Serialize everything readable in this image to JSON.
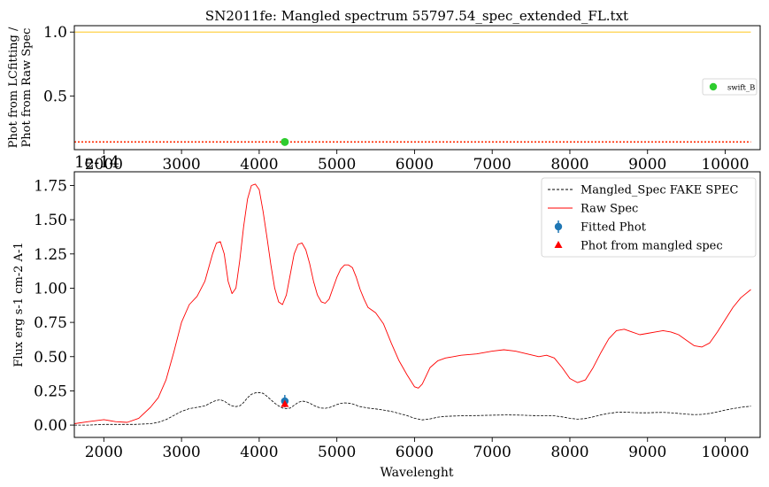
{
  "figure_title": "SN2011fe: Mangled spectrum 55797.54_spec_extended_FL.txt",
  "chart_data": [
    {
      "type": "scatter",
      "ylabel_line1": "Phot from LCfitting /",
      "ylabel_line2": "Phot from Raw Spec",
      "xlim": [
        1620,
        10450
      ],
      "ylim": [
        0.08,
        1.05
      ],
      "x_ticks": [
        2000,
        3000,
        4000,
        5000,
        6000,
        7000,
        8000,
        9000,
        10000
      ],
      "y_ticks": [
        0.5,
        1.0
      ],
      "y_tick_labels": [
        "0.5",
        "1.0"
      ],
      "reference_lines": [
        {
          "y": 1.0,
          "style": "solid",
          "color": "#ffd24a",
          "x_range": [
            1620,
            10330
          ]
        },
        {
          "y": 0.14,
          "style": "dotted",
          "color": "#ff2a00",
          "x_range": [
            1620,
            10330
          ]
        }
      ],
      "series": [
        {
          "name": "swift_B",
          "color": "#2ecc2e",
          "x": [
            4330
          ],
          "y": [
            0.14
          ],
          "yerr": [
            0.012
          ]
        }
      ],
      "legend": {
        "placement": "right",
        "entries": [
          "swift_B"
        ]
      }
    },
    {
      "type": "line",
      "xlabel": "Wavelenght",
      "ylabel": "Flux erg s-1 cm-2 A-1",
      "y_offset_label": "1e-14",
      "xlim": [
        1620,
        10450
      ],
      "ylim": [
        -0.09,
        1.85
      ],
      "x_ticks": [
        2000,
        3000,
        4000,
        5000,
        6000,
        7000,
        8000,
        9000,
        10000
      ],
      "y_ticks": [
        0,
        0.25,
        0.5,
        0.75,
        1.0,
        1.25,
        1.5,
        1.75
      ],
      "y_tick_labels": [
        "0.00",
        "0.25",
        "0.50",
        "0.75",
        "1.00",
        "1.25",
        "1.50",
        "1.75"
      ],
      "legend": {
        "placement": "top-right",
        "entries": [
          "Mangled_Spec FAKE SPEC",
          "Raw Spec",
          "Fitted Phot",
          "Phot from mangled spec"
        ]
      },
      "series": [
        {
          "name": "Raw Spec",
          "color": "#ff0000",
          "style": "solid",
          "x": [
            1620,
            1800,
            2000,
            2150,
            2300,
            2450,
            2600,
            2700,
            2800,
            2900,
            3000,
            3100,
            3200,
            3300,
            3400,
            3450,
            3500,
            3550,
            3600,
            3650,
            3700,
            3750,
            3800,
            3850,
            3900,
            3950,
            4000,
            4050,
            4100,
            4150,
            4200,
            4250,
            4300,
            4350,
            4400,
            4450,
            4500,
            4550,
            4600,
            4650,
            4700,
            4750,
            4800,
            4850,
            4900,
            4950,
            5000,
            5050,
            5100,
            5150,
            5200,
            5250,
            5300,
            5350,
            5400,
            5500,
            5600,
            5700,
            5800,
            5900,
            6000,
            6050,
            6100,
            6150,
            6200,
            6300,
            6400,
            6500,
            6600,
            6800,
            7000,
            7150,
            7300,
            7450,
            7600,
            7700,
            7800,
            7900,
            8000,
            8100,
            8200,
            8300,
            8400,
            8500,
            8600,
            8700,
            8800,
            8900,
            9000,
            9100,
            9200,
            9300,
            9400,
            9500,
            9600,
            9700,
            9800,
            9900,
            10000,
            10100,
            10200,
            10330
          ],
          "y": [
            0.01,
            0.025,
            0.04,
            0.025,
            0.02,
            0.05,
            0.13,
            0.2,
            0.33,
            0.53,
            0.75,
            0.88,
            0.94,
            1.05,
            1.25,
            1.33,
            1.34,
            1.25,
            1.05,
            0.96,
            1.0,
            1.2,
            1.45,
            1.65,
            1.75,
            1.76,
            1.72,
            1.56,
            1.37,
            1.17,
            1.0,
            0.9,
            0.88,
            0.95,
            1.1,
            1.25,
            1.32,
            1.33,
            1.28,
            1.18,
            1.05,
            0.95,
            0.9,
            0.89,
            0.92,
            1.0,
            1.08,
            1.14,
            1.17,
            1.17,
            1.15,
            1.08,
            0.99,
            0.92,
            0.86,
            0.82,
            0.74,
            0.6,
            0.47,
            0.37,
            0.28,
            0.27,
            0.3,
            0.36,
            0.42,
            0.47,
            0.49,
            0.5,
            0.51,
            0.52,
            0.54,
            0.55,
            0.54,
            0.52,
            0.5,
            0.51,
            0.49,
            0.42,
            0.34,
            0.31,
            0.33,
            0.42,
            0.53,
            0.63,
            0.69,
            0.7,
            0.68,
            0.66,
            0.67,
            0.68,
            0.69,
            0.68,
            0.66,
            0.62,
            0.58,
            0.57,
            0.6,
            0.68,
            0.77,
            0.86,
            0.93,
            0.99
          ]
        },
        {
          "name": "Mangled_Spec FAKE SPEC",
          "color": "#000000",
          "style": "dashed",
          "x": [
            1620,
            1800,
            2000,
            2200,
            2400,
            2600,
            2700,
            2800,
            2900,
            3000,
            3100,
            3200,
            3300,
            3400,
            3450,
            3500,
            3550,
            3600,
            3650,
            3700,
            3750,
            3800,
            3850,
            3900,
            3950,
            4000,
            4050,
            4100,
            4150,
            4200,
            4250,
            4300,
            4350,
            4400,
            4450,
            4500,
            4550,
            4600,
            4650,
            4700,
            4750,
            4800,
            4850,
            4900,
            4950,
            5000,
            5050,
            5100,
            5150,
            5200,
            5250,
            5300,
            5400,
            5500,
            5600,
            5700,
            5800,
            5900,
            6000,
            6100,
            6200,
            6300,
            6400,
            6600,
            6800,
            7000,
            7200,
            7400,
            7600,
            7800,
            7900,
            8000,
            8100,
            8200,
            8300,
            8400,
            8500,
            8600,
            8700,
            8800,
            8900,
            9000,
            9100,
            9200,
            9300,
            9400,
            9500,
            9600,
            9700,
            9800,
            9900,
            10000,
            10100,
            10200,
            10330
          ],
          "y": [
            0.0,
            0.0,
            0.005,
            0.005,
            0.005,
            0.01,
            0.02,
            0.04,
            0.07,
            0.1,
            0.12,
            0.13,
            0.14,
            0.17,
            0.18,
            0.185,
            0.175,
            0.155,
            0.14,
            0.135,
            0.14,
            0.165,
            0.2,
            0.225,
            0.235,
            0.238,
            0.232,
            0.21,
            0.185,
            0.16,
            0.14,
            0.125,
            0.12,
            0.125,
            0.145,
            0.165,
            0.175,
            0.172,
            0.16,
            0.145,
            0.132,
            0.125,
            0.123,
            0.127,
            0.138,
            0.15,
            0.158,
            0.162,
            0.16,
            0.155,
            0.145,
            0.135,
            0.125,
            0.118,
            0.11,
            0.1,
            0.085,
            0.07,
            0.05,
            0.038,
            0.045,
            0.058,
            0.064,
            0.068,
            0.07,
            0.072,
            0.074,
            0.072,
            0.068,
            0.068,
            0.06,
            0.05,
            0.043,
            0.048,
            0.06,
            0.075,
            0.085,
            0.093,
            0.095,
            0.092,
            0.09,
            0.09,
            0.092,
            0.093,
            0.09,
            0.085,
            0.08,
            0.076,
            0.078,
            0.085,
            0.096,
            0.11,
            0.12,
            0.13,
            0.138
          ]
        },
        {
          "name": "Fitted Phot",
          "color": "#1f77b4",
          "marker": "circle",
          "x": [
            4330
          ],
          "y": [
            0.175
          ],
          "yerr": [
            0.045
          ]
        },
        {
          "name": "Phot from mangled spec",
          "color": "#ff0000",
          "marker": "triangle",
          "x": [
            4330
          ],
          "y": [
            0.155
          ]
        }
      ]
    }
  ]
}
